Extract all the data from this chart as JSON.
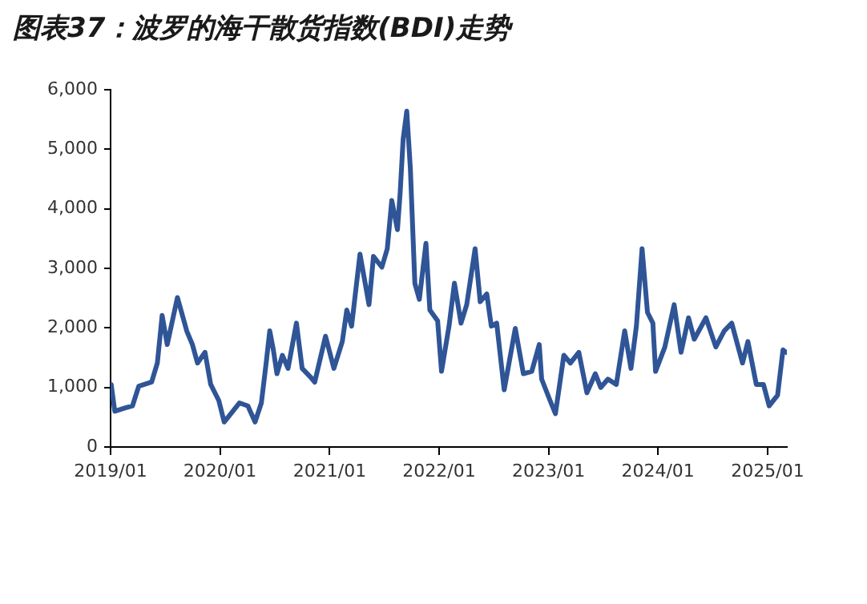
{
  "chart_data": {
    "type": "line",
    "title": "图表37：波罗的海干散货指数(BDI)走势",
    "x": [
      "2019-01-03",
      "2019-01-15",
      "2019-02-15",
      "2019-03-15",
      "2019-04-05",
      "2019-05-18",
      "2019-06-06",
      "2019-06-22",
      "2019-07-09",
      "2019-08-12",
      "2019-09-12",
      "2019-10-01",
      "2019-10-18",
      "2019-11-12",
      "2019-12-01",
      "2019-12-28",
      "2020-01-15",
      "2020-03-06",
      "2020-04-03",
      "2020-04-27",
      "2020-05-18",
      "2020-06-03",
      "2020-06-15",
      "2020-06-27",
      "2020-07-09",
      "2020-07-27",
      "2020-08-15",
      "2020-09-12",
      "2020-10-01",
      "2020-10-28",
      "2020-11-12",
      "2020-12-18",
      "2021-01-15",
      "2021-02-12",
      "2021-02-27",
      "2021-03-15",
      "2021-04-12",
      "2021-05-12",
      "2021-05-27",
      "2021-06-24",
      "2021-07-12",
      "2021-07-27",
      "2021-08-15",
      "2021-08-24",
      "2021-09-03",
      "2021-09-15",
      "2021-09-27",
      "2021-10-12",
      "2021-10-27",
      "2021-11-18",
      "2021-12-01",
      "2021-12-27",
      "2022-01-09",
      "2022-02-03",
      "2022-02-21",
      "2022-03-15",
      "2022-04-03",
      "2022-05-01",
      "2022-05-18",
      "2022-06-09",
      "2022-06-24",
      "2022-07-12",
      "2022-08-06",
      "2022-09-12",
      "2022-10-09",
      "2022-11-06",
      "2022-12-01",
      "2022-12-09",
      "2023-01-06",
      "2023-01-24",
      "2023-02-21",
      "2023-03-15",
      "2023-04-12",
      "2023-05-09",
      "2023-06-06",
      "2023-06-24",
      "2023-07-18",
      "2023-08-15",
      "2023-09-12",
      "2023-10-03",
      "2023-10-21",
      "2023-11-09",
      "2023-11-27",
      "2023-12-15",
      "2023-12-24",
      "2024-01-24",
      "2024-02-24",
      "2024-03-18",
      "2024-04-12",
      "2024-05-01",
      "2024-06-09",
      "2024-07-12",
      "2024-08-09",
      "2024-09-03",
      "2024-10-09",
      "2024-10-27",
      "2024-11-24",
      "2024-12-18",
      "2025-01-06",
      "2025-02-03",
      "2025-02-21",
      "2025-03-03"
    ],
    "series": [
      {
        "color": "#2f5597",
        "values": [
          1050,
          600,
          650,
          690,
          1020,
          1090,
          1410,
          2210,
          1720,
          2510,
          1950,
          1720,
          1410,
          1590,
          1050,
          780,
          420,
          740,
          690,
          420,
          740,
          1410,
          1950,
          1630,
          1230,
          1540,
          1320,
          2080,
          1320,
          1180,
          1090,
          1860,
          1320,
          1770,
          2300,
          2030,
          3240,
          2390,
          3200,
          3020,
          3330,
          4140,
          3650,
          4270,
          5170,
          5640,
          4680,
          2750,
          2480,
          3420,
          2300,
          2120,
          1270,
          2030,
          2750,
          2080,
          2390,
          3330,
          2440,
          2570,
          2030,
          2080,
          960,
          1990,
          1230,
          1270,
          1720,
          1140,
          780,
          560,
          1540,
          1410,
          1590,
          910,
          1230,
          1000,
          1140,
          1050,
          1950,
          1320,
          2030,
          3330,
          2260,
          2080,
          1270,
          1680,
          2390,
          1590,
          2170,
          1810,
          2170,
          1680,
          1950,
          2080,
          1410,
          1770,
          1050,
          1050,
          690,
          870,
          1630,
          1590
        ]
      }
    ],
    "xlim": [
      "2019-01-01",
      "2025-03-06"
    ],
    "xticks": [
      {
        "value": "2019-01",
        "label": "2019/01"
      },
      {
        "value": "2020-01",
        "label": "2020/01"
      },
      {
        "value": "2021-01",
        "label": "2021/01"
      },
      {
        "value": "2022-01",
        "label": "2022/01"
      },
      {
        "value": "2023-01",
        "label": "2023/01"
      },
      {
        "value": "2024-01",
        "label": "2024/01"
      },
      {
        "value": "2025-01",
        "label": "2025/01"
      }
    ],
    "ylim": [
      0,
      6000
    ],
    "yticks": [
      0,
      {
        "value": 1000,
        "label": "1,000"
      },
      {
        "value": 2000,
        "label": "2,000"
      },
      {
        "value": 3000,
        "label": "3,000"
      },
      {
        "value": 4000,
        "label": "4,000"
      },
      {
        "value": 5000,
        "label": "5,000"
      },
      {
        "value": 6000,
        "label": "6,000"
      }
    ],
    "grid": false,
    "legend": false
  }
}
